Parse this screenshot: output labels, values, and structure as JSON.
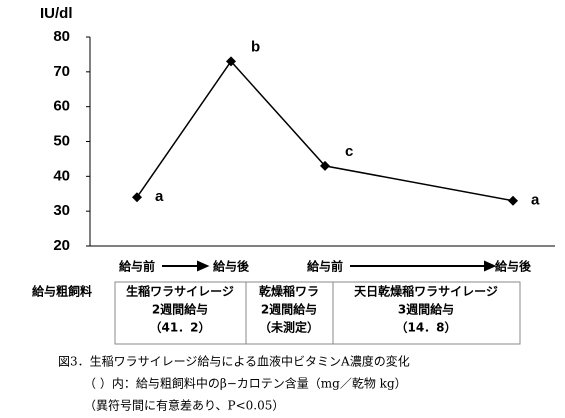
{
  "chart_data": {
    "type": "line",
    "y_axis_label": "IU/dl",
    "categories": [
      "給与前",
      "給与後",
      "給与前",
      "給与後"
    ],
    "values": [
      34,
      73,
      43,
      33
    ],
    "point_labels": [
      "a",
      "b",
      "c",
      "a"
    ],
    "color": "#000000",
    "ylim": [
      20,
      80
    ],
    "yticks": [
      20,
      30,
      40,
      50,
      60,
      70,
      80
    ],
    "grid": false
  },
  "table": {
    "row_header": "給与粗飼料",
    "cells": [
      [
        "生稲ワラサイレージ",
        "2週間給与",
        "（41．2）"
      ],
      [
        "乾燥稲ワラ",
        "2週間給与",
        "（未測定）"
      ],
      [
        "天日乾燥稲ワラサイレージ",
        "3週間給与",
        "（14．8）"
      ]
    ]
  },
  "caption": [
    "図3．生稲ワラサイレージ給与による血液中ビタミンA濃度の変化",
    "（ ）内：給与粗飼料中のβ−カロテン含量（mg／乾物 kg）",
    "（異符号間に有意差あり、P<0.05）"
  ]
}
